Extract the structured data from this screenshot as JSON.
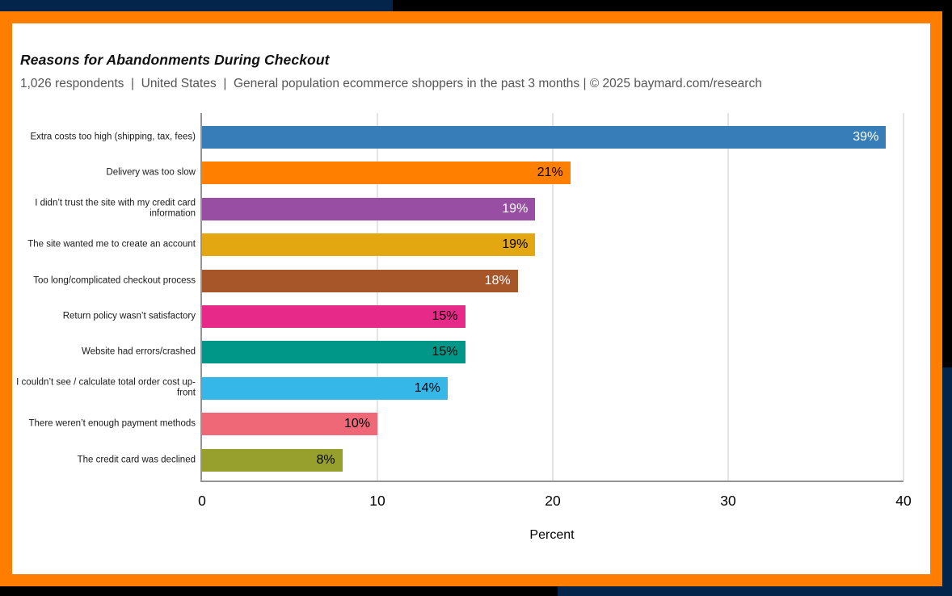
{
  "frame_colors": {
    "orange": "#ff7d00",
    "navy": "#04254b",
    "black": "#000000",
    "content_bg": "#ffffff"
  },
  "header": {
    "title": "Reasons for Abandonments During Checkout",
    "subtitle": "1,026 respondents  |  United States  |  General population ecommerce shoppers in the past 3 months | © 2025 baymard.com/research"
  },
  "chart_data": {
    "type": "bar",
    "orientation": "horizontal",
    "title": "Reasons for Abandonments During Checkout",
    "categories": [
      "Extra costs too high (shipping, tax, fees)",
      "Delivery was too slow",
      "I didn’t trust the site with my credit card information",
      "The site wanted me to create an account",
      "Too long/complicated checkout process",
      "Return policy wasn’t satisfactory",
      "Website had errors/crashed",
      "I couldn’t see / calculate total order cost up-front",
      "There weren’t enough payment methods",
      "The credit card was declined"
    ],
    "values": [
      39,
      21,
      19,
      19,
      18,
      15,
      15,
      14,
      10,
      8
    ],
    "value_labels": [
      "39%",
      "21%",
      "19%",
      "19%",
      "18%",
      "15%",
      "15%",
      "14%",
      "10%",
      "8%"
    ],
    "bar_colors": [
      "#377eb8",
      "#ff7f00",
      "#984ea3",
      "#e3a712",
      "#a65628",
      "#e7298a",
      "#009688",
      "#35b7e8",
      "#ef6878",
      "#97a02d"
    ],
    "value_label_colors": [
      "#ffffff",
      "#000000",
      "#ffffff",
      "#000000",
      "#ffffff",
      "#000000",
      "#000000",
      "#000000",
      "#000000",
      "#000000"
    ],
    "xlabel": "Percent",
    "x_ticks": [
      0,
      10,
      20,
      30,
      40
    ],
    "x_tick_labels": [
      "0",
      "10",
      "20",
      "30",
      "40"
    ],
    "xlim": [
      0,
      40
    ],
    "grid": "vertical",
    "gridline_color": "#e4e4e4",
    "axis_color": "#949494",
    "legend": "none"
  }
}
